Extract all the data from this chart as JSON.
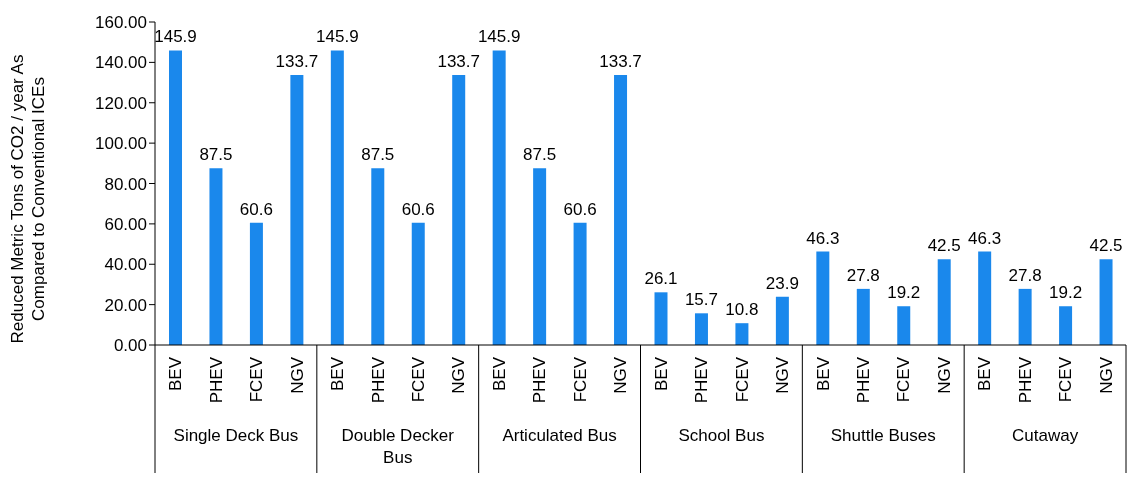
{
  "chart_data": {
    "type": "bar",
    "ylabel": "Reduced Metric Tons of CO2 / year As Compared to Conventional ICEs",
    "categories": [
      "BEV",
      "PHEV",
      "FCEV",
      "NGV",
      "BEV",
      "PHEV",
      "FCEV",
      "NGV",
      "BEV",
      "PHEV",
      "FCEV",
      "NGV",
      "BEV",
      "PHEV",
      "FCEV",
      "NGV",
      "BEV",
      "PHEV",
      "FCEV",
      "NGV",
      "BEV",
      "PHEV",
      "FCEV",
      "NGV"
    ],
    "values": [
      145.9,
      87.5,
      60.6,
      133.7,
      145.9,
      87.5,
      60.6,
      133.7,
      145.9,
      87.5,
      60.6,
      133.7,
      26.1,
      15.7,
      10.8,
      23.9,
      46.3,
      27.8,
      19.2,
      42.5,
      46.3,
      27.8,
      19.2,
      42.5
    ],
    "color": "#1a88ec",
    "data_labels": true,
    "annotations": [
      "Single Deck Bus",
      "Double Decker Bus",
      "Articulated Bus",
      "School Bus",
      "Shuttle Buses",
      "Cutaway"
    ],
    "ylim": [
      0,
      160
    ],
    "yticks": [
      {
        "value": 0,
        "label": "0.00"
      },
      {
        "value": 20,
        "label": "20.00"
      },
      {
        "value": 40,
        "label": "40.00"
      },
      {
        "value": 60,
        "label": "60.00"
      },
      {
        "value": 80,
        "label": "80.00"
      },
      {
        "value": 100,
        "label": "100.00"
      },
      {
        "value": 120,
        "label": "120.00"
      },
      {
        "value": 140,
        "label": "140.00"
      },
      {
        "value": 160,
        "label": "160.00"
      }
    ],
    "grid": false,
    "legend": false
  }
}
